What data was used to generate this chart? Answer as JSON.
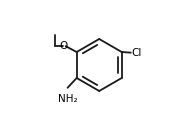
{
  "background": "#ffffff",
  "bond_color": "#1a1a1a",
  "bond_lw": 1.3,
  "text_color": "#000000",
  "font_size": 7.5,
  "atoms": {
    "O_label": "O",
    "Cl_label": "Cl",
    "NH2_label": "NH₂"
  }
}
